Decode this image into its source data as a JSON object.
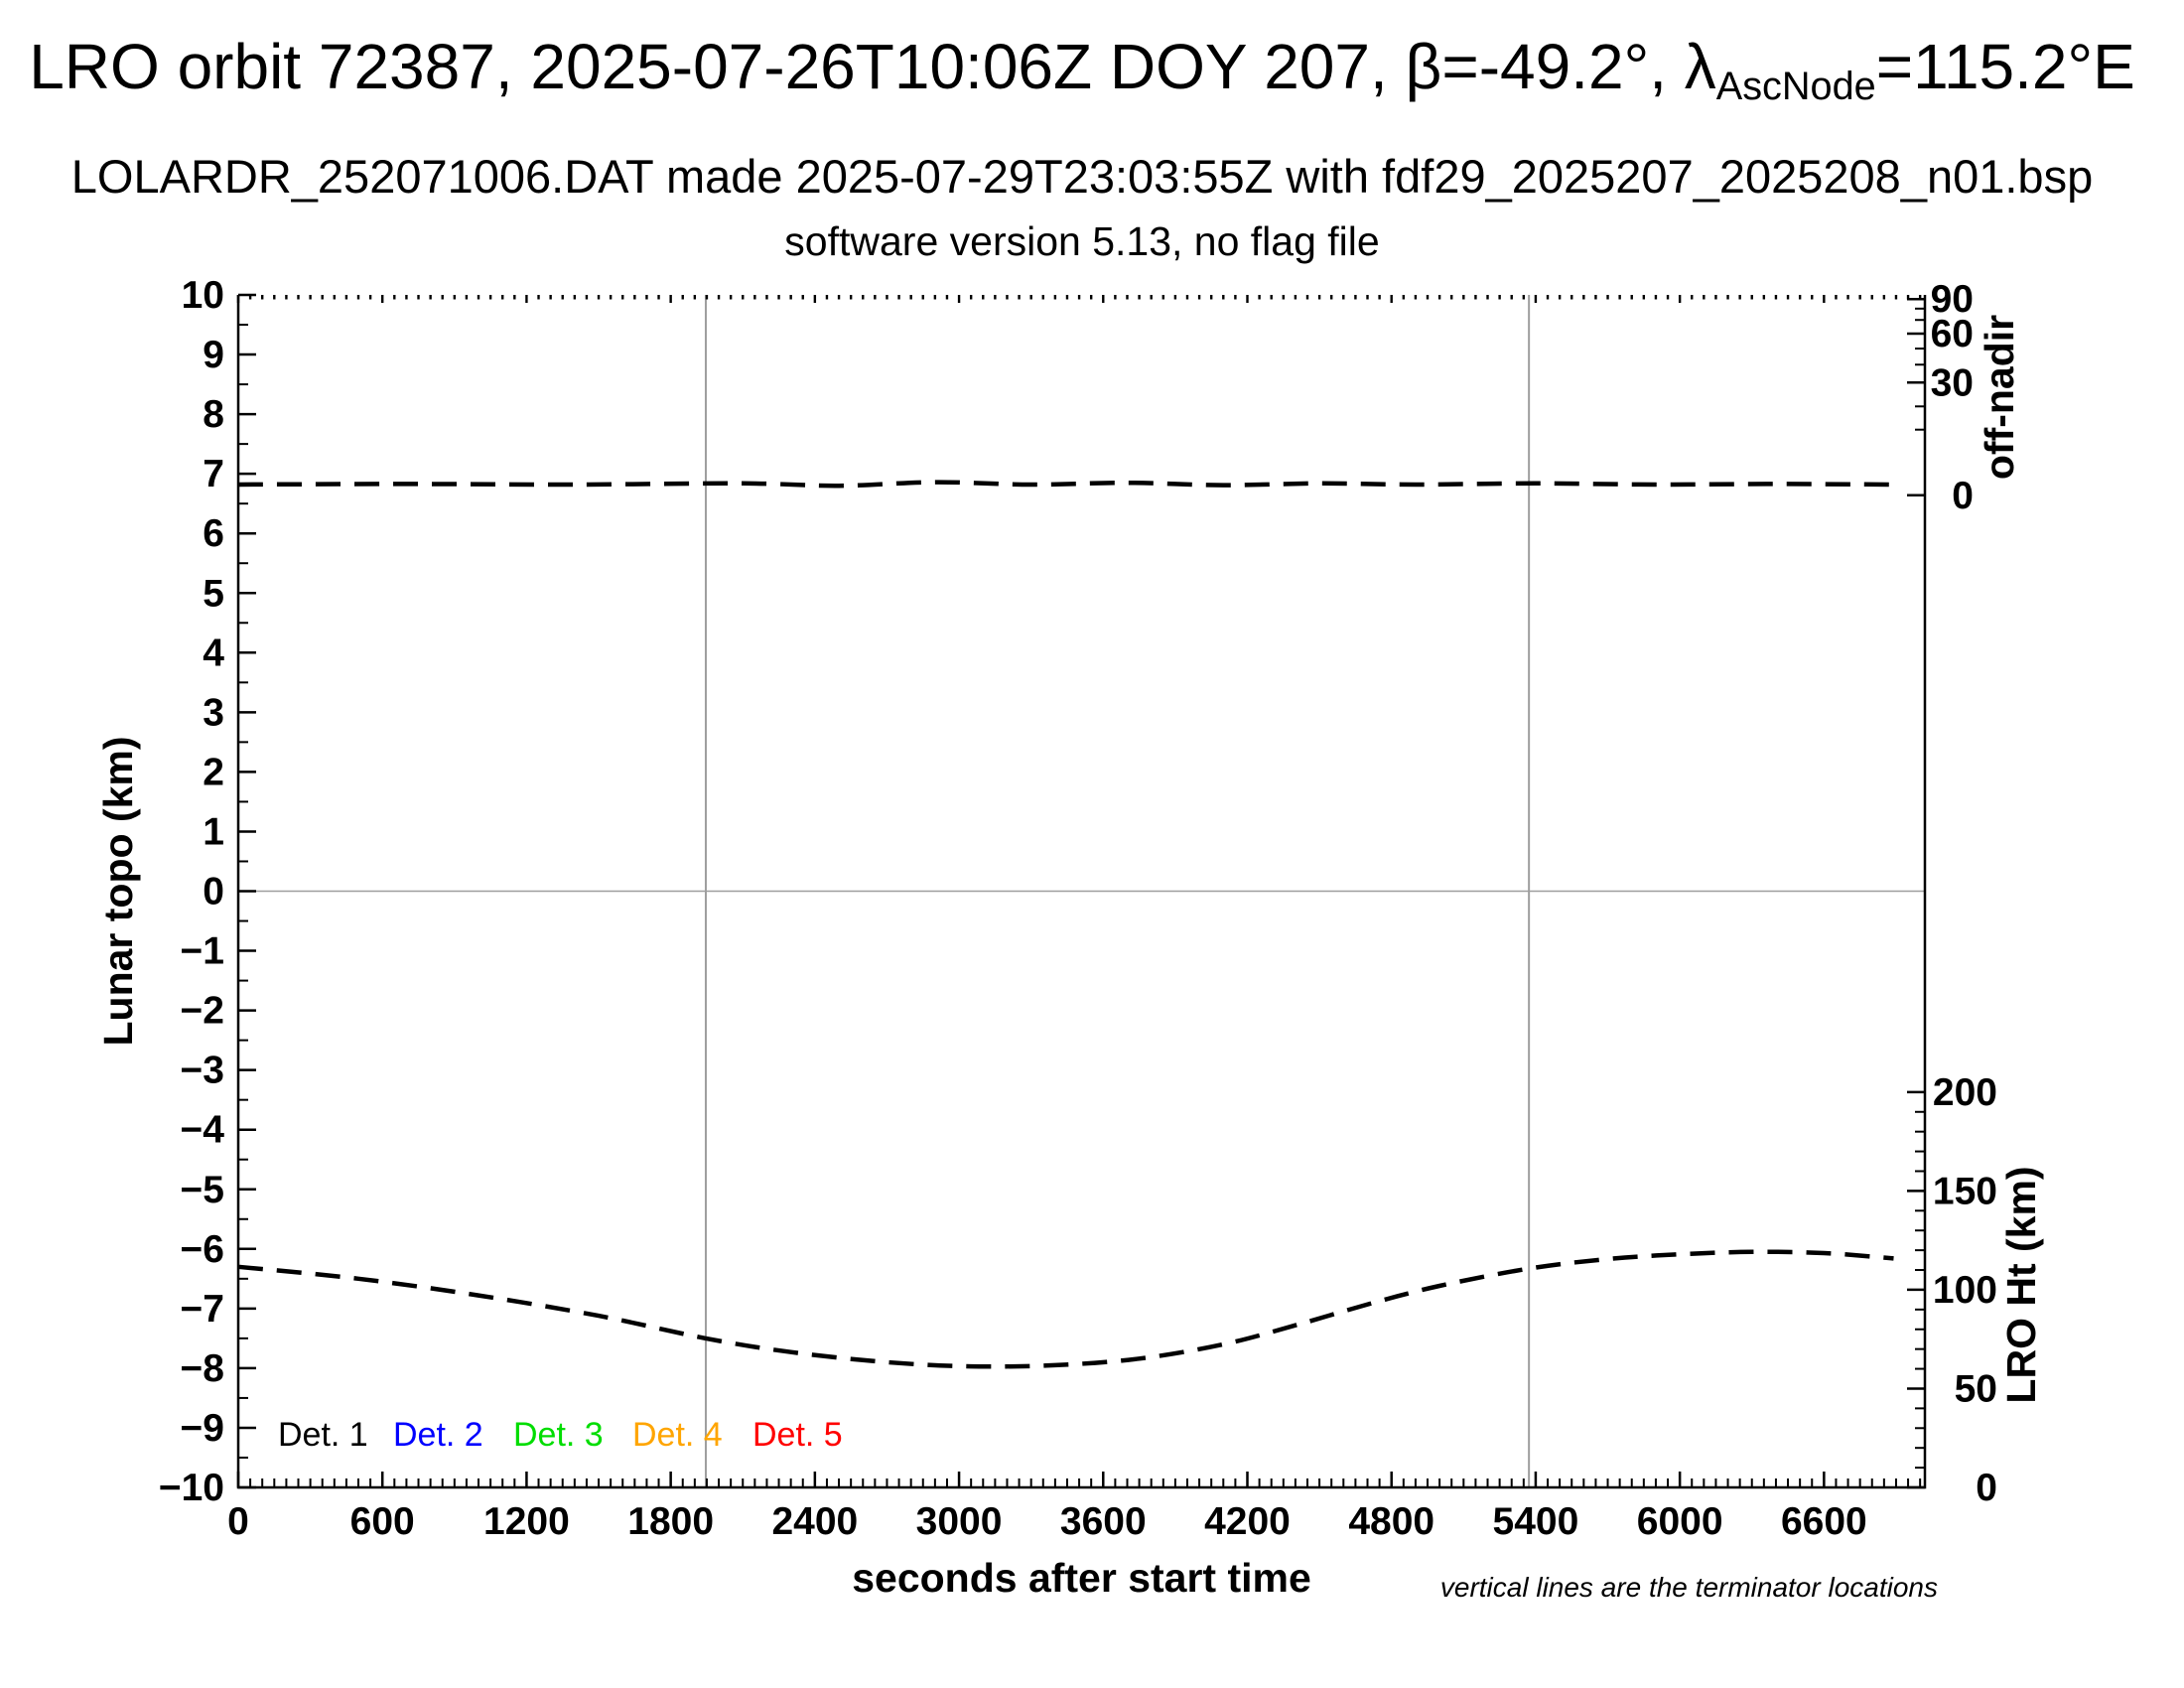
{
  "header": {
    "title_prefix": "LRO orbit 72387, 2025-07-26T10:06Z DOY 207, β=-49.2°, λ",
    "title_sub": "AscNode",
    "title_suffix": "=115.2°E",
    "subtitle": "LOLARDR_252071006.DAT made 2025-07-29T23:03:55Z with fdf29_2025207_2025208_n01.bsp",
    "version_line": "software version 5.13, no flag file"
  },
  "footnote": "vertical lines are the terminator locations",
  "legend": {
    "items": [
      {
        "label": "Det. 1",
        "color": "#000000"
      },
      {
        "label": "Det. 2",
        "color": "#0000ff"
      },
      {
        "label": "Det. 3",
        "color": "#00dd00"
      },
      {
        "label": "Det. 4",
        "color": "#ffa500"
      },
      {
        "label": "Det. 5",
        "color": "#ff0000"
      }
    ]
  },
  "chart_data": {
    "type": "line",
    "xlabel": "seconds after start time",
    "x_range": [
      0,
      7020
    ],
    "x_ticks": [
      0,
      600,
      1200,
      1800,
      2400,
      3000,
      3600,
      4200,
      4800,
      5400,
      6000,
      6600
    ],
    "x_minor_tick_step": 50,
    "grid": false,
    "left_axis": {
      "label": "Lunar topo (km)",
      "min": -10,
      "max": 10,
      "major_step": 1,
      "minor_step": 0.5
    },
    "right_axis_top": {
      "label": "off-nadir",
      "tick_labels": [
        90,
        60,
        30,
        0
      ],
      "tick_topo": [
        9.93,
        9.35,
        8.53,
        6.64
      ],
      "minor_tick_topo": [
        9.77,
        9.58,
        9.1,
        8.83,
        8.13,
        7.74
      ]
    },
    "right_axis_bottom": {
      "label": "LRO Ht (km)",
      "min": 0,
      "max": 200,
      "major_step": 50,
      "minor_step": 10,
      "topo_at_min": -10.0,
      "topo_at_max": -3.37
    },
    "terminator_lines_s": [
      1946,
      5372
    ],
    "horizontal_zero_line": 0,
    "line_color": "#9e9e9e",
    "series": [
      {
        "name": "spacecraft off-nadir angle",
        "axis": "right-top",
        "line_style": "dashed",
        "color": "#000000",
        "approx_value_deg": 1.7,
        "points_topo_scale": [
          [
            0,
            6.82
          ],
          [
            700,
            6.83
          ],
          [
            1400,
            6.82
          ],
          [
            2100,
            6.84
          ],
          [
            2500,
            6.8
          ],
          [
            2900,
            6.86
          ],
          [
            3300,
            6.82
          ],
          [
            3700,
            6.85
          ],
          [
            4100,
            6.81
          ],
          [
            4500,
            6.84
          ],
          [
            4900,
            6.82
          ],
          [
            5400,
            6.84
          ],
          [
            5900,
            6.82
          ],
          [
            6400,
            6.83
          ],
          [
            6890,
            6.82
          ]
        ]
      },
      {
        "name": "LRO height above surface",
        "axis": "right-bottom",
        "line_style": "dashed",
        "color": "#000000",
        "points_topo_scale": [
          [
            0,
            -6.3
          ],
          [
            500,
            -6.5
          ],
          [
            1000,
            -6.78
          ],
          [
            1500,
            -7.12
          ],
          [
            1946,
            -7.5
          ],
          [
            2300,
            -7.73
          ],
          [
            2700,
            -7.9
          ],
          [
            3050,
            -7.97
          ],
          [
            3400,
            -7.95
          ],
          [
            3750,
            -7.84
          ],
          [
            4100,
            -7.6
          ],
          [
            4400,
            -7.28
          ],
          [
            4710,
            -6.92
          ],
          [
            5000,
            -6.62
          ],
          [
            5372,
            -6.33
          ],
          [
            5700,
            -6.17
          ],
          [
            6000,
            -6.09
          ],
          [
            6300,
            -6.05
          ],
          [
            6600,
            -6.07
          ],
          [
            6890,
            -6.16
          ]
        ],
        "points_t_s_ht_km": [
          [
            0,
            111.6
          ],
          [
            500,
            105.6
          ],
          [
            1000,
            97.1
          ],
          [
            1500,
            86.9
          ],
          [
            1946,
            75.4
          ],
          [
            2300,
            68.5
          ],
          [
            2700,
            63.3
          ],
          [
            3050,
            61.2
          ],
          [
            3400,
            61.8
          ],
          [
            3750,
            65.1
          ],
          [
            4100,
            72.4
          ],
          [
            4400,
            82.1
          ],
          [
            4710,
            92.9
          ],
          [
            5000,
            102.0
          ],
          [
            5372,
            110.7
          ],
          [
            5700,
            115.5
          ],
          [
            6000,
            117.9
          ],
          [
            6300,
            119.2
          ],
          [
            6600,
            118.6
          ],
          [
            6890,
            115.9
          ]
        ]
      }
    ]
  }
}
